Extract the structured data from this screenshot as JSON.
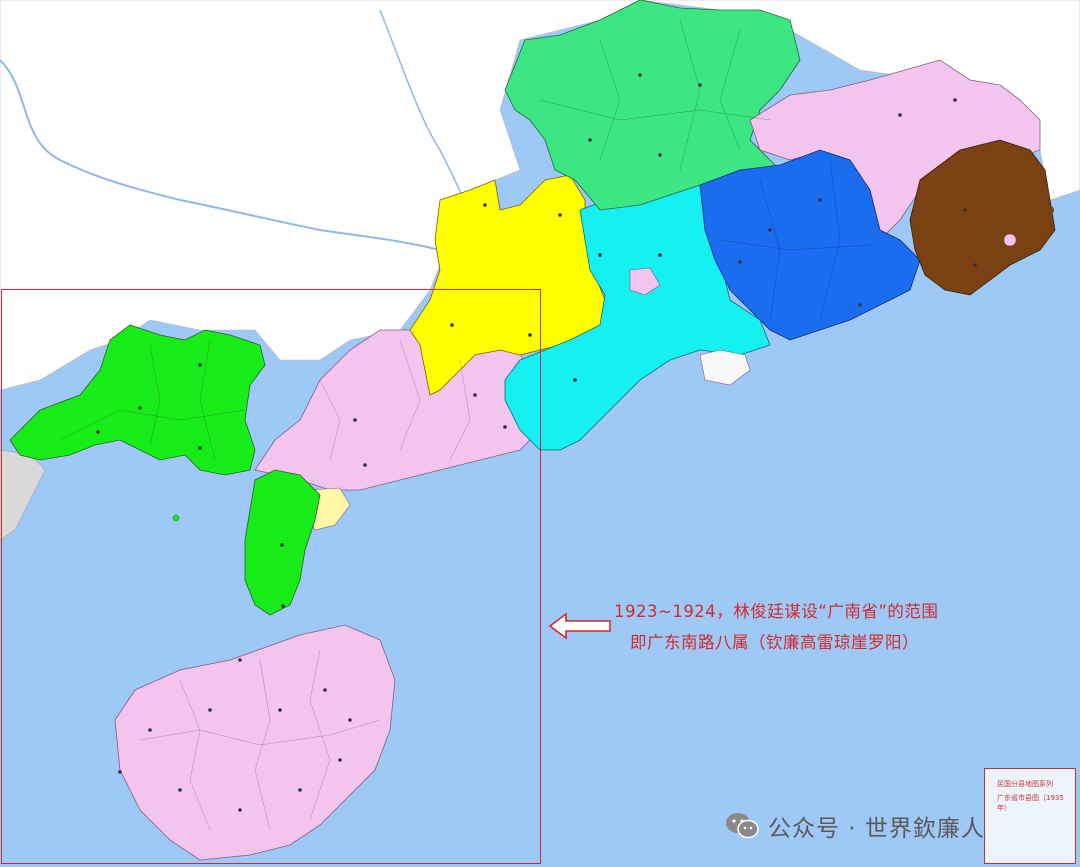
{
  "annotation": {
    "line1": "1923~1924，林俊廷谋设“广南省”的范围",
    "line2": "即广东南路八属（钦廉高雷琼崖罗阳）"
  },
  "watermark": {
    "text": "公众号 · 世界欽廉人",
    "icon": "wechat-icon"
  },
  "legend": {
    "title": "民国分县地图系列",
    "subtitle": "广东省市县图（1935 年）"
  },
  "colors": {
    "sea": "#9ec8f5",
    "land_outside": "#ffffff",
    "south_eight": "#f2c4ee",
    "qinlian_green": "#18ec18",
    "north_green": "#3ce682",
    "yellow": "#ffff00",
    "cyan": "#16f0f0",
    "blue": "#1a6cf0",
    "brown": "#7a4212",
    "annotation_red": "#d42a2a",
    "frame_red": "#cc2a36"
  }
}
